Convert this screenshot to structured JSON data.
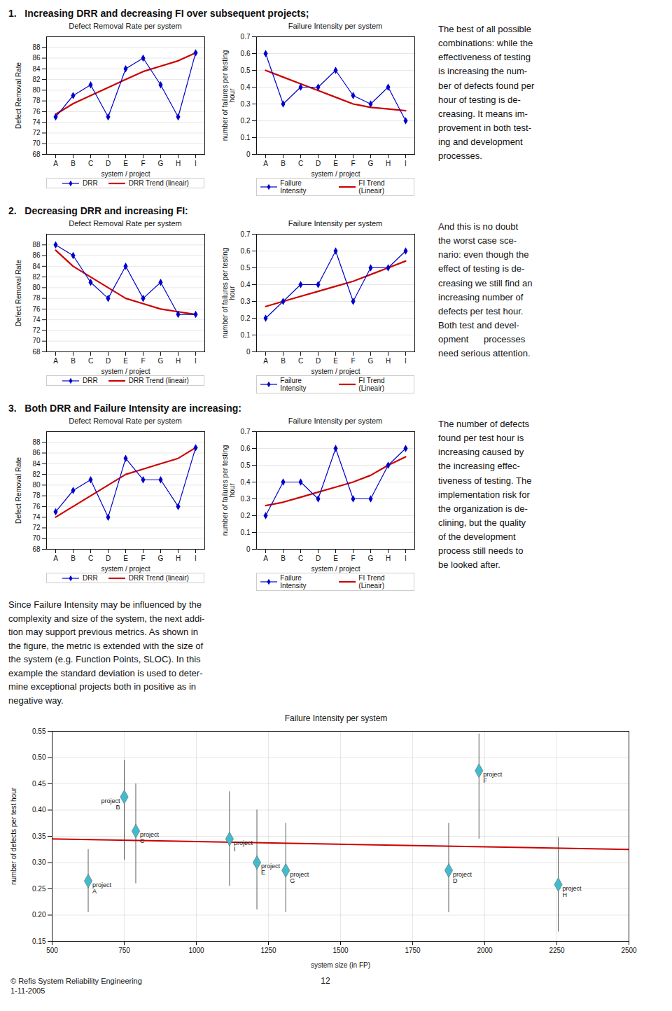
{
  "chart_data": [
    {
      "type": "line",
      "title": "Defect Removal Rate per system",
      "categories": [
        "A",
        "B",
        "C",
        "D",
        "E",
        "F",
        "G",
        "H",
        "I"
      ],
      "xlabel": "system / project",
      "ylabel": "Defect Removal Rate",
      "ylim": [
        68,
        90
      ],
      "yticks": [
        68,
        70,
        72,
        74,
        76,
        78,
        80,
        82,
        84,
        86,
        88
      ],
      "grid": "y",
      "legend": "bottom",
      "series": [
        {
          "name": "DRR",
          "color": "#0000cc",
          "marker": "diamond",
          "values": [
            75,
            79,
            81,
            75,
            84,
            86,
            81,
            75,
            87
          ]
        },
        {
          "name": "DRR Trend (lineair)",
          "color": "#cc0000",
          "values": [
            75.5,
            77.5,
            79.0,
            80.5,
            82.0,
            83.5,
            84.5,
            85.5,
            87.0
          ]
        }
      ]
    },
    {
      "type": "line",
      "title": "Failure Intensity per system",
      "categories": [
        "A",
        "B",
        "C",
        "D",
        "E",
        "F",
        "G",
        "H",
        "I"
      ],
      "xlabel": "system / project",
      "ylabel": "number of failures per testing\nhour",
      "ylim": [
        0,
        0.7
      ],
      "yticks": [
        0,
        0.1,
        0.2,
        0.3,
        0.4,
        0.5,
        0.6,
        0.7
      ],
      "grid": "y",
      "legend": "bottom",
      "series": [
        {
          "name": "Failure Intensity",
          "color": "#0000cc",
          "marker": "diamond",
          "values": [
            0.6,
            0.3,
            0.4,
            0.4,
            0.5,
            0.35,
            0.3,
            0.4,
            0.2
          ]
        },
        {
          "name": "FI Trend (Lineair)",
          "color": "#cc0000",
          "values": [
            0.5,
            0.46,
            0.42,
            0.38,
            0.34,
            0.3,
            0.28,
            0.27,
            0.26
          ]
        }
      ]
    },
    {
      "type": "line",
      "title": "Defect Removal Rate per system",
      "categories": [
        "A",
        "B",
        "C",
        "D",
        "E",
        "F",
        "G",
        "H",
        "I"
      ],
      "xlabel": "system / project",
      "ylabel": "Defect Removal Rate",
      "ylim": [
        68,
        90
      ],
      "yticks": [
        68,
        70,
        72,
        74,
        76,
        78,
        80,
        82,
        84,
        86,
        88
      ],
      "grid": "y",
      "legend": "bottom",
      "series": [
        {
          "name": "DRR",
          "color": "#0000cc",
          "marker": "diamond",
          "values": [
            88,
            86,
            81,
            78,
            84,
            78,
            81,
            75,
            75
          ]
        },
        {
          "name": "DRR Trend (lineair)",
          "color": "#cc0000",
          "values": [
            87,
            84,
            82,
            80,
            78,
            77,
            76,
            75.5,
            75
          ]
        }
      ]
    },
    {
      "type": "line",
      "title": "Failure Intensity per system",
      "categories": [
        "A",
        "B",
        "C",
        "D",
        "E",
        "F",
        "G",
        "H",
        "I"
      ],
      "xlabel": "system / project",
      "ylabel": "number of failures per testing\nhour",
      "ylim": [
        0,
        0.7
      ],
      "yticks": [
        0,
        0.1,
        0.2,
        0.3,
        0.4,
        0.5,
        0.6,
        0.7
      ],
      "grid": "y",
      "legend": "bottom",
      "series": [
        {
          "name": "Failure Intensity",
          "color": "#0000cc",
          "marker": "diamond",
          "values": [
            0.2,
            0.3,
            0.4,
            0.4,
            0.6,
            0.3,
            0.5,
            0.5,
            0.6
          ]
        },
        {
          "name": "FI Trend (Lineair)",
          "color": "#cc0000",
          "values": [
            0.27,
            0.3,
            0.33,
            0.36,
            0.39,
            0.42,
            0.46,
            0.5,
            0.54
          ]
        }
      ]
    },
    {
      "type": "line",
      "title": "Defect Removal Rate per system",
      "categories": [
        "A",
        "B",
        "C",
        "D",
        "E",
        "F",
        "G",
        "H",
        "I"
      ],
      "xlabel": "system / project",
      "ylabel": "Defect Removal Rate",
      "ylim": [
        68,
        90
      ],
      "yticks": [
        68,
        70,
        72,
        74,
        76,
        78,
        80,
        82,
        84,
        86,
        88
      ],
      "grid": "y",
      "legend": "bottom",
      "series": [
        {
          "name": "DRR",
          "color": "#0000cc",
          "marker": "diamond",
          "values": [
            75,
            79,
            81,
            74,
            85,
            81,
            81,
            76,
            87
          ]
        },
        {
          "name": "DRR Trend (lineair)",
          "color": "#cc0000",
          "values": [
            74,
            76,
            78,
            80,
            82,
            83,
            84,
            85,
            87
          ]
        }
      ]
    },
    {
      "type": "line",
      "title": "Failure Intensity per system",
      "categories": [
        "A",
        "B",
        "C",
        "D",
        "E",
        "F",
        "G",
        "H",
        "I"
      ],
      "xlabel": "system / project",
      "ylabel": "number of failures per testing\nhour",
      "ylim": [
        0,
        0.7
      ],
      "yticks": [
        0,
        0.1,
        0.2,
        0.3,
        0.4,
        0.5,
        0.6,
        0.7
      ],
      "grid": "y",
      "legend": "bottom",
      "series": [
        {
          "name": "Failure Intensity",
          "color": "#0000cc",
          "marker": "diamond",
          "values": [
            0.2,
            0.4,
            0.4,
            0.3,
            0.6,
            0.3,
            0.3,
            0.5,
            0.6
          ]
        },
        {
          "name": "FI Trend (Lineair)",
          "color": "#cc0000",
          "values": [
            0.26,
            0.28,
            0.31,
            0.34,
            0.37,
            0.4,
            0.44,
            0.5,
            0.55
          ]
        }
      ]
    },
    {
      "type": "scatter",
      "title": "Failure Intensity per system",
      "xlabel": "system size (in FP)",
      "ylabel": "number of defects per test hour",
      "xlim": [
        500,
        2500
      ],
      "xticks": [
        500,
        750,
        1000,
        1250,
        1500,
        1750,
        2000,
        2250,
        2500
      ],
      "ylim": [
        0.15,
        0.55
      ],
      "yticks": [
        {
          "value": 0.15,
          "label": "0.15"
        },
        {
          "value": 0.2,
          "label": "0.20"
        },
        {
          "value": 0.25,
          "label": "0.25"
        },
        {
          "value": 0.3,
          "label": "0.30"
        },
        {
          "value": 0.35,
          "label": "0.35"
        },
        {
          "value": 0.4,
          "label": "0.40"
        },
        {
          "value": 0.45,
          "label": "0.45"
        },
        {
          "value": 0.5,
          "label": "0.50"
        },
        {
          "value": 0.55,
          "label": "0.55"
        }
      ],
      "grid": true,
      "series": [
        {
          "type": "scatter",
          "color": "#44bbcc",
          "marker": "diamond",
          "x": [
            625,
            750,
            790,
            1875,
            1210,
            1980,
            1310,
            2255,
            1115
          ],
          "values": [
            0.265,
            0.425,
            0.36,
            0.285,
            0.3,
            0.475,
            0.285,
            0.258,
            0.345
          ],
          "err_lo": [
            0.06,
            0.12,
            0.1,
            0.08,
            0.09,
            0.13,
            0.08,
            0.09,
            0.09
          ],
          "err_hi": [
            0.06,
            0.07,
            0.09,
            0.09,
            0.1,
            0.07,
            0.09,
            0.09,
            0.09
          ],
          "labels": [
            "project\nA",
            "project\nB",
            "project\nC",
            "project\nD",
            "project\nE",
            "project\nF",
            "project\nG",
            "project\nH",
            "project\nI"
          ]
        },
        {
          "type": "line",
          "color": "#cc0000",
          "x": [
            500,
            2500
          ],
          "values": [
            0.345,
            0.325
          ]
        }
      ]
    }
  ],
  "sections": [
    {
      "title": "1.   Increasing DRR and decreasing FI over subsequent projects;",
      "text": "The best of all possible\ncombinations: while the\neffectiveness of testing\nis increasing the num-\nber of defects found per\nhour of testing is de-\ncreasing. It means im-\nprovement in both test-\ning and development\nprocesses."
    },
    {
      "title": "2.   Decreasing DRR and increasing FI:",
      "text": "And this is no doubt\nthe worst case sce-\nnario: even though the\neffect of testing is de-\ncreasing we still find an\nincreasing number of\ndefects per test hour.\nBoth test and devel-\nopment      processes\nneed serious attention."
    },
    {
      "title": "3.   Both DRR and Failure Intensity are increasing:",
      "text": "The number of defects\nfound per test hour is\nincreasing caused by\nthe increasing effec-\ntiveness of testing. The\nimplementation risk for\nthe organization is de-\nclining, but the quality\nof the development\nprocess still needs to\nbe looked after."
    }
  ],
  "text": "Since Failure Intensity may be influenced by the\ncomplexity and size of the system, the next addi-\ntion may support previous metrics. As shown in\nthe figure, the metric is extended with the size of\nthe system (e.g. Function Points, SLOC). In this\nexample the standard deviation is used to deter-\nmine exceptional projects both in positive as in\nnegative way.",
  "footer": "© Refis System Reliability Engineering\n1-11-2005",
  "page_number": 12
}
